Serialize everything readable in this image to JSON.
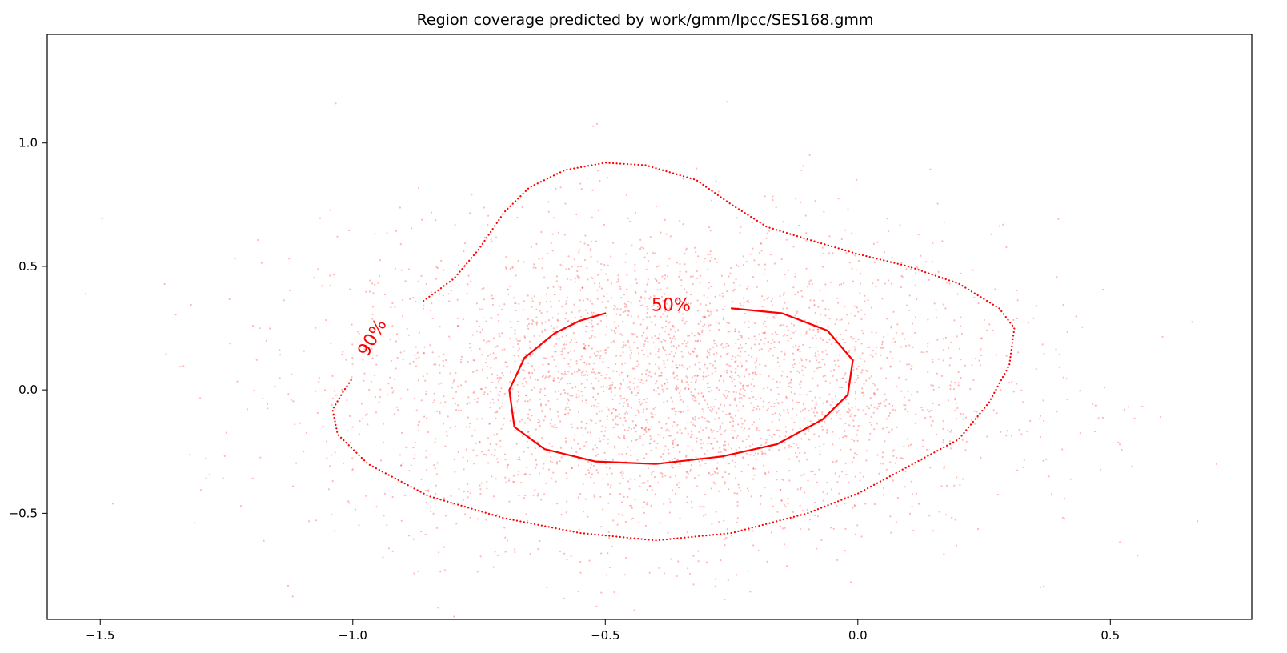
{
  "chart_data": {
    "type": "scatter",
    "title": "Region coverage predicted by work/gmm/lpcc/SES168.gmm",
    "xlabel": "",
    "ylabel": "",
    "xlim": [
      -1.605,
      0.78
    ],
    "ylim": [
      -0.93,
      1.44
    ],
    "grid": false,
    "legend": "none",
    "color": "#ff0000",
    "x_ticks": [
      {
        "value": -1.5,
        "label": "−1.5"
      },
      {
        "value": -1.0,
        "label": "−1.0"
      },
      {
        "value": -0.5,
        "label": "−0.5"
      },
      {
        "value": 0.0,
        "label": "0.0"
      },
      {
        "value": 0.5,
        "label": "0.5"
      }
    ],
    "y_ticks": [
      {
        "value": 1.0,
        "label": "1.0"
      },
      {
        "value": 0.5,
        "label": "0.5"
      },
      {
        "value": 0.0,
        "label": "0.0"
      },
      {
        "value": -0.5,
        "label": "−0.5"
      }
    ],
    "scatter_cloud": {
      "center": [
        -0.38,
        0.02
      ],
      "spread": [
        0.33,
        0.32
      ],
      "points": 3500
    },
    "contours": [
      {
        "label": "90%",
        "style": "dotted",
        "label_pos": [
          -0.96,
          0.21
        ],
        "label_rotation": -60,
        "points": [
          [
            -0.86,
            0.36
          ],
          [
            -0.8,
            0.45
          ],
          [
            -0.75,
            0.57
          ],
          [
            -0.7,
            0.72
          ],
          [
            -0.65,
            0.82
          ],
          [
            -0.58,
            0.89
          ],
          [
            -0.5,
            0.92
          ],
          [
            -0.42,
            0.91
          ],
          [
            -0.32,
            0.85
          ],
          [
            -0.25,
            0.75
          ],
          [
            -0.18,
            0.66
          ],
          [
            -0.1,
            0.61
          ],
          [
            0.0,
            0.55
          ],
          [
            0.1,
            0.5
          ],
          [
            0.2,
            0.43
          ],
          [
            0.28,
            0.33
          ],
          [
            0.31,
            0.25
          ],
          [
            0.3,
            0.1
          ],
          [
            0.26,
            -0.05
          ],
          [
            0.2,
            -0.2
          ],
          [
            0.1,
            -0.31
          ],
          [
            0.0,
            -0.42
          ],
          [
            -0.1,
            -0.5
          ],
          [
            -0.25,
            -0.58
          ],
          [
            -0.4,
            -0.61
          ],
          [
            -0.55,
            -0.58
          ],
          [
            -0.7,
            -0.52
          ],
          [
            -0.85,
            -0.43
          ],
          [
            -0.97,
            -0.3
          ],
          [
            -1.03,
            -0.18
          ],
          [
            -1.04,
            -0.08
          ],
          [
            -1.02,
            -0.01
          ],
          [
            -1.0,
            0.05
          ]
        ]
      },
      {
        "label": "50%",
        "style": "solid",
        "label_pos": [
          -0.37,
          0.34
        ],
        "label_rotation": 0,
        "points": [
          [
            -0.25,
            0.33
          ],
          [
            -0.15,
            0.31
          ],
          [
            -0.06,
            0.24
          ],
          [
            -0.01,
            0.12
          ],
          [
            -0.02,
            -0.02
          ],
          [
            -0.07,
            -0.12
          ],
          [
            -0.16,
            -0.22
          ],
          [
            -0.27,
            -0.27
          ],
          [
            -0.4,
            -0.3
          ],
          [
            -0.52,
            -0.29
          ],
          [
            -0.62,
            -0.24
          ],
          [
            -0.68,
            -0.15
          ],
          [
            -0.69,
            0.0
          ],
          [
            -0.66,
            0.13
          ],
          [
            -0.6,
            0.23
          ],
          [
            -0.55,
            0.28
          ],
          [
            -0.5,
            0.31
          ]
        ]
      }
    ]
  }
}
